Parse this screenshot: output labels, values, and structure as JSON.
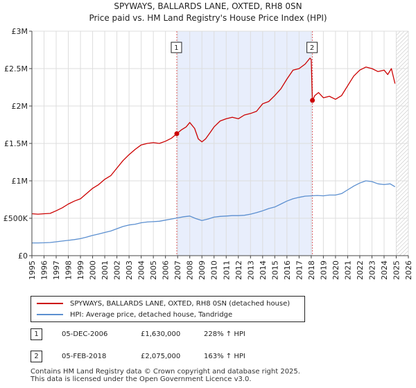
{
  "title": "SPYWAYS, BALLARDS LANE, OXTED, RH8 0SN",
  "subtitle": "Price paid vs. HM Land Registry's House Price Index (HPI)",
  "legend": {
    "property_label": "SPYWAYS, BALLARDS LANE, OXTED, RH8 0SN (detached house)",
    "hpi_label": "HPI: Average price, detached house, Tandridge"
  },
  "colors": {
    "property": "#cc0000",
    "hpi": "#5b8fd0",
    "shade": "#e8eefc",
    "grid": "#dddddd",
    "sale_line": "#e06060"
  },
  "sales": [
    {
      "num": "1",
      "date": "05-DEC-2006",
      "price": "£1,630,000",
      "hpi": "228% ↑ HPI"
    },
    {
      "num": "2",
      "date": "05-FEB-2018",
      "price": "£2,075,000",
      "hpi": "163% ↑ HPI"
    }
  ],
  "footer": {
    "line1": "Contains HM Land Registry data © Crown copyright and database right 2025.",
    "line2": "This data is licensed under the Open Government Licence v3.0."
  },
  "chart_data": {
    "type": "line",
    "title": "SPYWAYS, BALLARDS LANE, OXTED, RH8 0SN",
    "xlim": [
      1995,
      2026
    ],
    "ylim": [
      0,
      3000000
    ],
    "ytick_values": [
      0,
      500000,
      1000000,
      1500000,
      2000000,
      2500000,
      3000000
    ],
    "ytick_labels": [
      "£0",
      "£500K",
      "£1M",
      "£1.5M",
      "£2M",
      "£2.5M",
      "£3M"
    ],
    "xtick_labels": [
      "1995",
      "1996",
      "1997",
      "1998",
      "1999",
      "2000",
      "2001",
      "2002",
      "2003",
      "2004",
      "2005",
      "2006",
      "2007",
      "2008",
      "2009",
      "2010",
      "2011",
      "2012",
      "2013",
      "2014",
      "2015",
      "2016",
      "2017",
      "2018",
      "2019",
      "2020",
      "2021",
      "2022",
      "2023",
      "2024",
      "2025",
      "2026"
    ],
    "shade_range": [
      2006.93,
      2018.1
    ],
    "hatch_from": 2025.0,
    "markers": [
      {
        "label": "1",
        "x": 2006.93,
        "y": 1630000
      },
      {
        "label": "2",
        "x": 2018.1,
        "y": 2075000
      }
    ],
    "series": [
      {
        "name": "SPYWAYS, BALLARDS LANE, OXTED, RH8 0SN (detached house)",
        "x": [
          1995.0,
          1995.5,
          1996.0,
          1996.5,
          1997.0,
          1997.5,
          1998.0,
          1998.5,
          1999.0,
          1999.5,
          2000.0,
          2000.5,
          2001.0,
          2001.5,
          2002.0,
          2002.5,
          2003.0,
          2003.5,
          2004.0,
          2004.5,
          2005.0,
          2005.5,
          2006.0,
          2006.5,
          2006.93,
          2007.3,
          2007.7,
          2008.0,
          2008.4,
          2008.7,
          2009.0,
          2009.3,
          2009.7,
          2010.0,
          2010.5,
          2011.0,
          2011.5,
          2012.0,
          2012.5,
          2013.0,
          2013.5,
          2014.0,
          2014.5,
          2015.0,
          2015.5,
          2016.0,
          2016.5,
          2017.0,
          2017.5,
          2017.9,
          2018.0,
          2018.1,
          2018.3,
          2018.6,
          2019.0,
          2019.5,
          2020.0,
          2020.5,
          2021.0,
          2021.5,
          2022.0,
          2022.5,
          2023.0,
          2023.5,
          2024.0,
          2024.3,
          2024.6,
          2024.9
        ],
        "y": [
          560000,
          555000,
          560000,
          565000,
          600000,
          640000,
          690000,
          730000,
          760000,
          830000,
          900000,
          950000,
          1020000,
          1070000,
          1170000,
          1270000,
          1350000,
          1420000,
          1480000,
          1500000,
          1510000,
          1500000,
          1530000,
          1570000,
          1630000,
          1680000,
          1720000,
          1780000,
          1700000,
          1560000,
          1520000,
          1560000,
          1650000,
          1720000,
          1800000,
          1830000,
          1850000,
          1830000,
          1880000,
          1900000,
          1930000,
          2030000,
          2060000,
          2140000,
          2230000,
          2360000,
          2480000,
          2500000,
          2560000,
          2640000,
          2620000,
          2075000,
          2140000,
          2180000,
          2110000,
          2130000,
          2090000,
          2140000,
          2270000,
          2400000,
          2480000,
          2520000,
          2500000,
          2460000,
          2480000,
          2420000,
          2500000,
          2300000
        ]
      },
      {
        "name": "HPI: Average price, detached house, Tandridge",
        "x": [
          1995.0,
          1995.5,
          1996.0,
          1996.5,
          1997.0,
          1997.5,
          1998.0,
          1998.5,
          1999.0,
          1999.5,
          2000.0,
          2000.5,
          2001.0,
          2001.5,
          2002.0,
          2002.5,
          2003.0,
          2003.5,
          2004.0,
          2004.5,
          2005.0,
          2005.5,
          2006.0,
          2006.5,
          2007.0,
          2007.5,
          2008.0,
          2008.5,
          2009.0,
          2009.5,
          2010.0,
          2010.5,
          2011.0,
          2011.5,
          2012.0,
          2012.5,
          2013.0,
          2013.5,
          2014.0,
          2014.5,
          2015.0,
          2015.5,
          2016.0,
          2016.5,
          2017.0,
          2017.5,
          2018.0,
          2018.5,
          2019.0,
          2019.5,
          2020.0,
          2020.5,
          2021.0,
          2021.5,
          2022.0,
          2022.5,
          2023.0,
          2023.5,
          2024.0,
          2024.5,
          2024.9
        ],
        "y": [
          170000,
          170000,
          172000,
          176000,
          185000,
          195000,
          205000,
          215000,
          228000,
          248000,
          270000,
          290000,
          310000,
          330000,
          360000,
          390000,
          410000,
          420000,
          440000,
          450000,
          455000,
          460000,
          475000,
          490000,
          505000,
          520000,
          530000,
          495000,
          470000,
          490000,
          515000,
          525000,
          530000,
          535000,
          535000,
          540000,
          555000,
          575000,
          600000,
          630000,
          650000,
          690000,
          730000,
          760000,
          780000,
          795000,
          800000,
          805000,
          800000,
          810000,
          810000,
          830000,
          880000,
          930000,
          970000,
          1000000,
          990000,
          960000,
          950000,
          960000,
          920000
        ]
      }
    ]
  }
}
